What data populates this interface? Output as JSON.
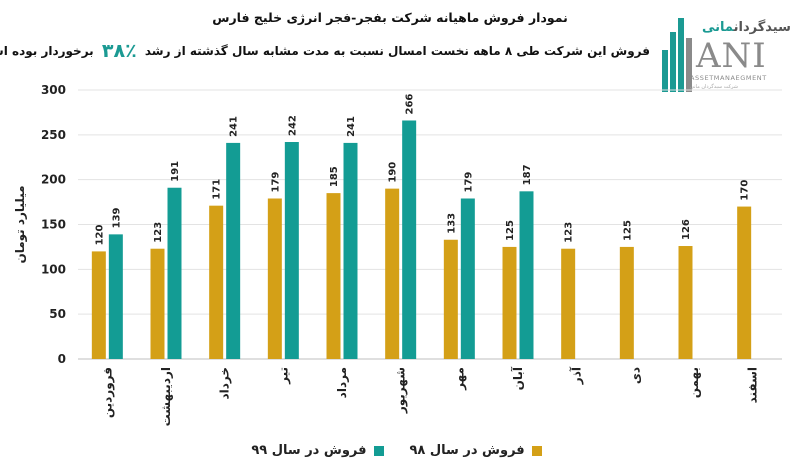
{
  "title": "نمودار فروش ماهیانه شرکت بفجر-فجر انرژی خلیج فارس",
  "subtitle": {
    "before": "فروش این شرکت طی ۸ ماهه نخست امسال نسبت به مدت مشابه سال گذشته از رشد",
    "highlight": "۳۸٪",
    "after": "برخوردار بوده است."
  },
  "logo": {
    "top_text": "سیدگردان",
    "top_accent": "مانی",
    "main": "ANI",
    "sub": "ASSETMANAEGMENT",
    "tagline": "شرکت سبدگردان مانی"
  },
  "colors": {
    "series98": "#d4a017",
    "series99": "#139c94",
    "highlight": "#1b9a93"
  },
  "chart_data": {
    "type": "bar",
    "ylabel": "میلیارد تومان",
    "ylim": [
      0,
      300
    ],
    "yticks": [
      0,
      50,
      100,
      150,
      200,
      250,
      300
    ],
    "grid": true,
    "legend_position": "bottom",
    "categories": [
      "فروردین",
      "اردیبهشت",
      "خرداد",
      "تیر",
      "مرداد",
      "شهریور",
      "مهر",
      "آبان",
      "آذر",
      "دی",
      "بهمن",
      "اسفند"
    ],
    "series": [
      {
        "name": "فروش در سال ۹۸",
        "color": "#d4a017",
        "values": [
          120,
          123,
          171,
          179,
          185,
          190,
          133,
          125,
          123,
          125,
          126,
          170
        ]
      },
      {
        "name": "فروش در سال ۹۹",
        "color": "#139c94",
        "values": [
          139,
          191,
          241,
          242,
          241,
          266,
          179,
          187,
          null,
          null,
          null,
          null
        ]
      }
    ]
  }
}
